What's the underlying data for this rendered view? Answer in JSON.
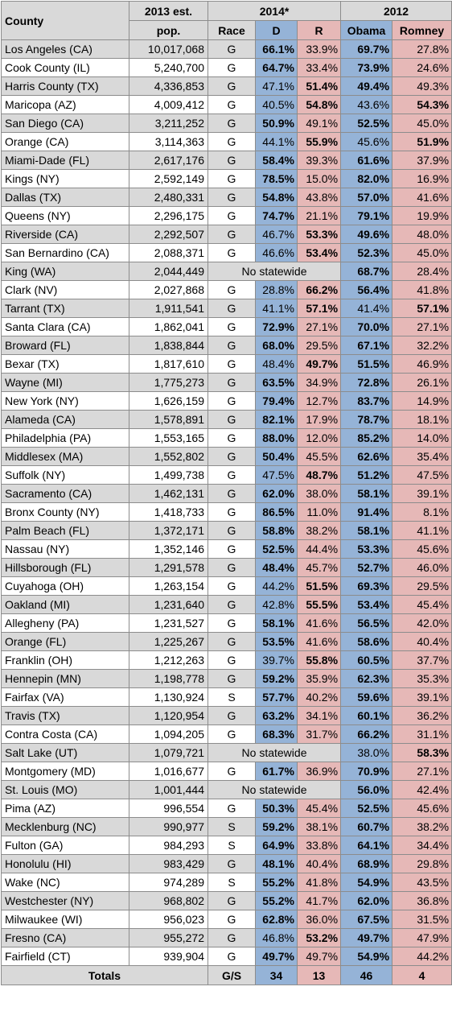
{
  "colors": {
    "dem": "#95b3d7",
    "rep": "#e6b8b7",
    "gray": "#d9d9d9",
    "white": "#ffffff"
  },
  "headers": {
    "county": "County",
    "pop_line1": "2013 est.",
    "pop_line2": "pop.",
    "group2014": "2014*",
    "group2012": "2012",
    "race": "Race",
    "d": "D",
    "r": "R",
    "obama": "Obama",
    "romney": "Romney"
  },
  "rows": [
    {
      "county": "Los Angeles (CA)",
      "pop": "10,017,068",
      "race": "G",
      "d": "66.1%",
      "r": "33.9%",
      "obama": "69.7%",
      "romney": "27.8%",
      "w14": "d",
      "w12": "o",
      "shade": true
    },
    {
      "county": "Cook County (IL)",
      "pop": "5,240,700",
      "race": "G",
      "d": "64.7%",
      "r": "33.4%",
      "obama": "73.9%",
      "romney": "24.6%",
      "w14": "d",
      "w12": "o",
      "shade": false
    },
    {
      "county": "Harris County (TX)",
      "pop": "4,336,853",
      "race": "G",
      "d": "47.1%",
      "r": "51.4%",
      "obama": "49.4%",
      "romney": "49.3%",
      "w14": "r",
      "w12": "o",
      "shade": true
    },
    {
      "county": "Maricopa (AZ)",
      "pop": "4,009,412",
      "race": "G",
      "d": "40.5%",
      "r": "54.8%",
      "obama": "43.6%",
      "romney": "54.3%",
      "w14": "r",
      "w12": "m",
      "shade": false
    },
    {
      "county": "San Diego (CA)",
      "pop": "3,211,252",
      "race": "G",
      "d": "50.9%",
      "r": "49.1%",
      "obama": "52.5%",
      "romney": "45.0%",
      "w14": "d",
      "w12": "o",
      "shade": true
    },
    {
      "county": "Orange (CA)",
      "pop": "3,114,363",
      "race": "G",
      "d": "44.1%",
      "r": "55.9%",
      "obama": "45.6%",
      "romney": "51.9%",
      "w14": "r",
      "w12": "m",
      "shade": false
    },
    {
      "county": "Miami-Dade (FL)",
      "pop": "2,617,176",
      "race": "G",
      "d": "58.4%",
      "r": "39.3%",
      "obama": "61.6%",
      "romney": "37.9%",
      "w14": "d",
      "w12": "o",
      "shade": true
    },
    {
      "county": "Kings (NY)",
      "pop": "2,592,149",
      "race": "G",
      "d": "78.5%",
      "r": "15.0%",
      "obama": "82.0%",
      "romney": "16.9%",
      "w14": "d",
      "w12": "o",
      "shade": false
    },
    {
      "county": "Dallas (TX)",
      "pop": "2,480,331",
      "race": "G",
      "d": "54.8%",
      "r": "43.8%",
      "obama": "57.0%",
      "romney": "41.6%",
      "w14": "d",
      "w12": "o",
      "shade": true
    },
    {
      "county": "Queens (NY)",
      "pop": "2,296,175",
      "race": "G",
      "d": "74.7%",
      "r": "21.1%",
      "obama": "79.1%",
      "romney": "19.9%",
      "w14": "d",
      "w12": "o",
      "shade": false
    },
    {
      "county": "Riverside (CA)",
      "pop": "2,292,507",
      "race": "G",
      "d": "46.7%",
      "r": "53.3%",
      "obama": "49.6%",
      "romney": "48.0%",
      "w14": "r",
      "w12": "o",
      "shade": true
    },
    {
      "county": "San Bernardino (CA)",
      "pop": "2,088,371",
      "race": "G",
      "d": "46.6%",
      "r": "53.4%",
      "obama": "52.3%",
      "romney": "45.0%",
      "w14": "r",
      "w12": "o",
      "shade": false
    },
    {
      "county": "King (WA)",
      "pop": "2,044,449",
      "nostatewide": "No statewide",
      "obama": "68.7%",
      "romney": "28.4%",
      "w12": "o",
      "shade": true
    },
    {
      "county": "Clark (NV)",
      "pop": "2,027,868",
      "race": "G",
      "d": "28.8%",
      "r": "66.2%",
      "obama": "56.4%",
      "romney": "41.8%",
      "w14": "r",
      "w12": "o",
      "shade": false
    },
    {
      "county": "Tarrant (TX)",
      "pop": "1,911,541",
      "race": "G",
      "d": "41.1%",
      "r": "57.1%",
      "obama": "41.4%",
      "romney": "57.1%",
      "w14": "r",
      "w12": "m",
      "shade": true
    },
    {
      "county": "Santa Clara (CA)",
      "pop": "1,862,041",
      "race": "G",
      "d": "72.9%",
      "r": "27.1%",
      "obama": "70.0%",
      "romney": "27.1%",
      "w14": "d",
      "w12": "o",
      "shade": false
    },
    {
      "county": "Broward (FL)",
      "pop": "1,838,844",
      "race": "G",
      "d": "68.0%",
      "r": "29.5%",
      "obama": "67.1%",
      "romney": "32.2%",
      "w14": "d",
      "w12": "o",
      "shade": true
    },
    {
      "county": "Bexar (TX)",
      "pop": "1,817,610",
      "race": "G",
      "d": "48.4%",
      "r": "49.7%",
      "obama": "51.5%",
      "romney": "46.9%",
      "w14": "r",
      "w12": "o",
      "shade": false
    },
    {
      "county": "Wayne (MI)",
      "pop": "1,775,273",
      "race": "G",
      "d": "63.5%",
      "r": "34.9%",
      "obama": "72.8%",
      "romney": "26.1%",
      "w14": "d",
      "w12": "o",
      "shade": true
    },
    {
      "county": "New York (NY)",
      "pop": "1,626,159",
      "race": "G",
      "d": "79.4%",
      "r": "12.7%",
      "obama": "83.7%",
      "romney": "14.9%",
      "w14": "d",
      "w12": "o",
      "shade": false
    },
    {
      "county": "Alameda (CA)",
      "pop": "1,578,891",
      "race": "G",
      "d": "82.1%",
      "r": "17.9%",
      "obama": "78.7%",
      "romney": "18.1%",
      "w14": "d",
      "w12": "o",
      "shade": true
    },
    {
      "county": "Philadelphia (PA)",
      "pop": "1,553,165",
      "race": "G",
      "d": "88.0%",
      "r": "12.0%",
      "obama": "85.2%",
      "romney": "14.0%",
      "w14": "d",
      "w12": "o",
      "shade": false
    },
    {
      "county": "Middlesex (MA)",
      "pop": "1,552,802",
      "race": "G",
      "d": "50.4%",
      "r": "45.5%",
      "obama": "62.6%",
      "romney": "35.4%",
      "w14": "d",
      "w12": "o",
      "shade": true
    },
    {
      "county": "Suffolk (NY)",
      "pop": "1,499,738",
      "race": "G",
      "d": "47.5%",
      "r": "48.7%",
      "obama": "51.2%",
      "romney": "47.5%",
      "w14": "r",
      "w12": "o",
      "shade": false
    },
    {
      "county": "Sacramento (CA)",
      "pop": "1,462,131",
      "race": "G",
      "d": "62.0%",
      "r": "38.0%",
      "obama": "58.1%",
      "romney": "39.1%",
      "w14": "d",
      "w12": "o",
      "shade": true
    },
    {
      "county": "Bronx County (NY)",
      "pop": "1,418,733",
      "race": "G",
      "d": "86.5%",
      "r": "11.0%",
      "obama": "91.4%",
      "romney": "8.1%",
      "w14": "d",
      "w12": "o",
      "shade": false
    },
    {
      "county": "Palm Beach (FL)",
      "pop": "1,372,171",
      "race": "G",
      "d": "58.8%",
      "r": "38.2%",
      "obama": "58.1%",
      "romney": "41.1%",
      "w14": "d",
      "w12": "o",
      "shade": true
    },
    {
      "county": "Nassau (NY)",
      "pop": "1,352,146",
      "race": "G",
      "d": "52.5%",
      "r": "44.4%",
      "obama": "53.3%",
      "romney": "45.6%",
      "w14": "d",
      "w12": "o",
      "shade": false
    },
    {
      "county": "Hillsborough (FL)",
      "pop": "1,291,578",
      "race": "G",
      "d": "48.4%",
      "r": "45.7%",
      "obama": "52.7%",
      "romney": "46.0%",
      "w14": "d",
      "w12": "o",
      "shade": true
    },
    {
      "county": "Cuyahoga (OH)",
      "pop": "1,263,154",
      "race": "G",
      "d": "44.2%",
      "r": "51.5%",
      "obama": "69.3%",
      "romney": "29.5%",
      "w14": "r",
      "w12": "o",
      "shade": false
    },
    {
      "county": "Oakland (MI)",
      "pop": "1,231,640",
      "race": "G",
      "d": "42.8%",
      "r": "55.5%",
      "obama": "53.4%",
      "romney": "45.4%",
      "w14": "r",
      "w12": "o",
      "shade": true
    },
    {
      "county": "Allegheny (PA)",
      "pop": "1,231,527",
      "race": "G",
      "d": "58.1%",
      "r": "41.6%",
      "obama": "56.5%",
      "romney": "42.0%",
      "w14": "d",
      "w12": "o",
      "shade": false
    },
    {
      "county": "Orange (FL)",
      "pop": "1,225,267",
      "race": "G",
      "d": "53.5%",
      "r": "41.6%",
      "obama": "58.6%",
      "romney": "40.4%",
      "w14": "d",
      "w12": "o",
      "shade": true
    },
    {
      "county": "Franklin (OH)",
      "pop": "1,212,263",
      "race": "G",
      "d": "39.7%",
      "r": "55.8%",
      "obama": "60.5%",
      "romney": "37.7%",
      "w14": "r",
      "w12": "o",
      "shade": false
    },
    {
      "county": "Hennepin (MN)",
      "pop": "1,198,778",
      "race": "G",
      "d": "59.2%",
      "r": "35.9%",
      "obama": "62.3%",
      "romney": "35.3%",
      "w14": "d",
      "w12": "o",
      "shade": true
    },
    {
      "county": "Fairfax (VA)",
      "pop": "1,130,924",
      "race": "S",
      "d": "57.7%",
      "r": "40.2%",
      "obama": "59.6%",
      "romney": "39.1%",
      "w14": "d",
      "w12": "o",
      "shade": false
    },
    {
      "county": "Travis (TX)",
      "pop": "1,120,954",
      "race": "G",
      "d": "63.2%",
      "r": "34.1%",
      "obama": "60.1%",
      "romney": "36.2%",
      "w14": "d",
      "w12": "o",
      "shade": true
    },
    {
      "county": "Contra Costa (CA)",
      "pop": "1,094,205",
      "race": "G",
      "d": "68.3%",
      "r": "31.7%",
      "obama": "66.2%",
      "romney": "31.1%",
      "w14": "d",
      "w12": "o",
      "shade": false
    },
    {
      "county": "Salt Lake (UT)",
      "pop": "1,079,721",
      "nostatewide": "No statewide",
      "obama": "38.0%",
      "romney": "58.3%",
      "w12": "m",
      "shade": true
    },
    {
      "county": "Montgomery (MD)",
      "pop": "1,016,677",
      "race": "G",
      "d": "61.7%",
      "r": "36.9%",
      "obama": "70.9%",
      "romney": "27.1%",
      "w14": "d",
      "w12": "o",
      "shade": false
    },
    {
      "county": "St. Louis (MO)",
      "pop": "1,001,444",
      "nostatewide": "No statewide",
      "obama": "56.0%",
      "romney": "42.4%",
      "w12": "o",
      "shade": true
    },
    {
      "county": "Pima (AZ)",
      "pop": "996,554",
      "race": "G",
      "d": "50.3%",
      "r": "45.4%",
      "obama": "52.5%",
      "romney": "45.6%",
      "w14": "d",
      "w12": "o",
      "shade": false
    },
    {
      "county": "Mecklenburg (NC)",
      "pop": "990,977",
      "race": "S",
      "d": "59.2%",
      "r": "38.1%",
      "obama": "60.7%",
      "romney": "38.2%",
      "w14": "d",
      "w12": "o",
      "shade": true
    },
    {
      "county": "Fulton (GA)",
      "pop": "984,293",
      "race": "S",
      "d": "64.9%",
      "r": "33.8%",
      "obama": "64.1%",
      "romney": "34.4%",
      "w14": "d",
      "w12": "o",
      "shade": false
    },
    {
      "county": "Honolulu (HI)",
      "pop": "983,429",
      "race": "G",
      "d": "48.1%",
      "r": "40.4%",
      "obama": "68.9%",
      "romney": "29.8%",
      "w14": "d",
      "w12": "o",
      "shade": true
    },
    {
      "county": "Wake (NC)",
      "pop": "974,289",
      "race": "S",
      "d": "55.2%",
      "r": "41.8%",
      "obama": "54.9%",
      "romney": "43.5%",
      "w14": "d",
      "w12": "o",
      "shade": false
    },
    {
      "county": "Westchester (NY)",
      "pop": "968,802",
      "race": "G",
      "d": "55.2%",
      "r": "41.7%",
      "obama": "62.0%",
      "romney": "36.8%",
      "w14": "d",
      "w12": "o",
      "shade": true
    },
    {
      "county": "Milwaukee (WI)",
      "pop": "956,023",
      "race": "G",
      "d": "62.8%",
      "r": "36.0%",
      "obama": "67.5%",
      "romney": "31.5%",
      "w14": "d",
      "w12": "o",
      "shade": false
    },
    {
      "county": "Fresno (CA)",
      "pop": "955,272",
      "race": "G",
      "d": "46.8%",
      "r": "53.2%",
      "obama": "49.7%",
      "romney": "47.9%",
      "w14": "r",
      "w12": "o",
      "shade": true
    },
    {
      "county": "Fairfield (CT)",
      "pop": "939,904",
      "race": "G",
      "d": "49.7%",
      "r": "49.7%",
      "obama": "54.9%",
      "romney": "44.2%",
      "w14": "d",
      "w12": "o",
      "shade": false
    }
  ],
  "totals": {
    "label": "Totals",
    "race": "G/S",
    "d": "34",
    "r": "13",
    "obama": "46",
    "romney": "4"
  }
}
